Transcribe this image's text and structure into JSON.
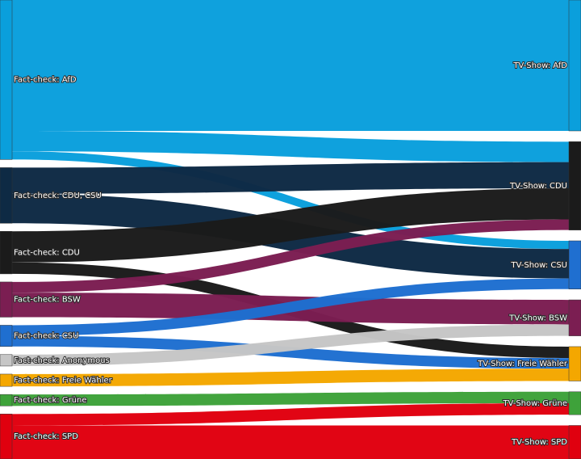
{
  "chart_data": {
    "type": "sankey",
    "nodes": [
      {
        "name": "Fact-check: AfD",
        "color": "#0a9fdc"
      },
      {
        "name": "Fact-check: CDU, CSU",
        "color": "#0e2a44"
      },
      {
        "name": "Fact-check: CDU",
        "color": "#1b1b1b"
      },
      {
        "name": "Fact-check: BSW",
        "color": "#7b1e52"
      },
      {
        "name": "Fact-check: CSU",
        "color": "#1f6fd0"
      },
      {
        "name": "Fact-check: Anonymous",
        "color": "#c6c6c6"
      },
      {
        "name": "Fact-check: Freie Wähler",
        "color": "#f4a700"
      },
      {
        "name": "Fact-check: Grüne",
        "color": "#3ea23a"
      },
      {
        "name": "Fact-check: SPD",
        "color": "#e0000f"
      },
      {
        "name": "TV-Show: AfD",
        "color": "#0a9fdc"
      },
      {
        "name": "TV-Show: CDU",
        "color": "#1b1b1b"
      },
      {
        "name": "TV-Show: CSU",
        "color": "#1f6fd0"
      },
      {
        "name": "TV-Show: BSW",
        "color": "#7b1e52"
      },
      {
        "name": "TV-Show: Freie Wähler",
        "color": "#f4a700"
      },
      {
        "name": "TV-Show: Grüne",
        "color": "#3ea23a"
      },
      {
        "name": "TV-Show: SPD",
        "color": "#e0000f"
      }
    ],
    "links": [
      {
        "source": 0,
        "target": 9,
        "value": 160
      },
      {
        "source": 0,
        "target": 10,
        "value": 25
      },
      {
        "source": 0,
        "target": 11,
        "value": 10
      },
      {
        "source": 1,
        "target": 10,
        "value": 32
      },
      {
        "source": 1,
        "target": 11,
        "value": 36
      },
      {
        "source": 2,
        "target": 10,
        "value": 38
      },
      {
        "source": 2,
        "target": 13,
        "value": 14
      },
      {
        "source": 3,
        "target": 10,
        "value": 13
      },
      {
        "source": 3,
        "target": 12,
        "value": 30
      },
      {
        "source": 4,
        "target": 11,
        "value": 13
      },
      {
        "source": 4,
        "target": 13,
        "value": 13
      },
      {
        "source": 5,
        "target": 12,
        "value": 14
      },
      {
        "source": 6,
        "target": 13,
        "value": 15
      },
      {
        "source": 7,
        "target": 14,
        "value": 14
      },
      {
        "source": 8,
        "target": 14,
        "value": 14
      },
      {
        "source": 8,
        "target": 15,
        "value": 41
      }
    ]
  }
}
